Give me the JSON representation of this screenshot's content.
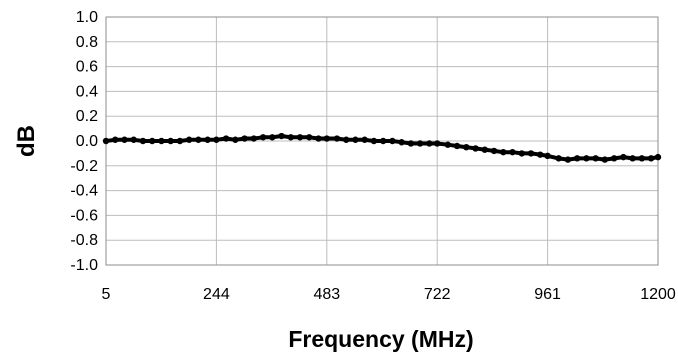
{
  "chart_data": {
    "type": "line",
    "title": "",
    "xlabel": "Frequency (MHz)",
    "ylabel": "dB",
    "xlim": [
      5,
      1200
    ],
    "ylim": [
      -1.0,
      1.0
    ],
    "grid": true,
    "x_tick_labels": [
      "5",
      "244",
      "483",
      "722",
      "961",
      "1200"
    ],
    "y_tick_labels": [
      "1.0",
      "0.8",
      "0.6",
      "0.4",
      "0.2",
      "0.0",
      "-0.2",
      "-0.4",
      "-0.6",
      "-0.8",
      "-1.0"
    ],
    "series": [
      {
        "color": "#000000",
        "x": [
          5,
          25,
          45,
          65,
          85,
          105,
          125,
          145,
          165,
          185,
          205,
          225,
          244,
          265,
          285,
          305,
          325,
          345,
          365,
          385,
          405,
          425,
          445,
          465,
          483,
          505,
          525,
          545,
          565,
          585,
          605,
          625,
          645,
          665,
          685,
          705,
          722,
          745,
          765,
          785,
          805,
          825,
          845,
          865,
          885,
          905,
          925,
          945,
          961,
          985,
          1005,
          1025,
          1045,
          1065,
          1085,
          1105,
          1125,
          1145,
          1165,
          1185,
          1200
        ],
        "y": [
          0.0,
          0.01,
          0.01,
          0.01,
          0.0,
          0.0,
          0.0,
          0.0,
          0.0,
          0.01,
          0.01,
          0.01,
          0.01,
          0.02,
          0.01,
          0.02,
          0.02,
          0.03,
          0.03,
          0.04,
          0.03,
          0.03,
          0.03,
          0.02,
          0.02,
          0.02,
          0.01,
          0.01,
          0.01,
          0.0,
          0.0,
          0.0,
          -0.01,
          -0.02,
          -0.02,
          -0.02,
          -0.02,
          -0.03,
          -0.04,
          -0.05,
          -0.06,
          -0.07,
          -0.08,
          -0.09,
          -0.09,
          -0.1,
          -0.1,
          -0.11,
          -0.12,
          -0.14,
          -0.15,
          -0.14,
          -0.14,
          -0.14,
          -0.15,
          -0.14,
          -0.13,
          -0.14,
          -0.14,
          -0.14,
          -0.13
        ]
      }
    ]
  }
}
